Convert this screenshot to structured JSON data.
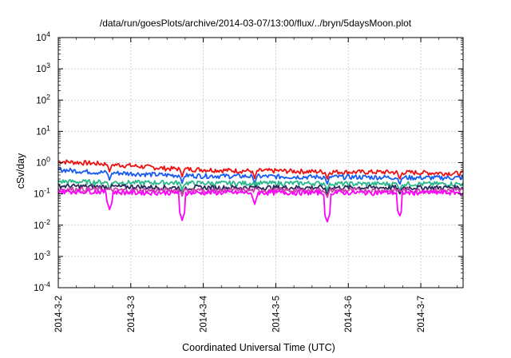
{
  "chart_data": {
    "type": "line",
    "title": "/data/run/goesPlots/archive/2014-03-07/13:00/flux/../bryn/5daysMoon.plot",
    "xlabel": "Coordinated Universal Time (UTC)",
    "ylabel": "cSv/day",
    "yscale": "log",
    "ylim": [
      0.0001,
      10000
    ],
    "yticks": [
      {
        "base": "10",
        "exp": "-4"
      },
      {
        "base": "10",
        "exp": "-3"
      },
      {
        "base": "10",
        "exp": "-2"
      },
      {
        "base": "10",
        "exp": "-1"
      },
      {
        "base": "10",
        "exp": "0"
      },
      {
        "base": "10",
        "exp": "1"
      },
      {
        "base": "10",
        "exp": "2"
      },
      {
        "base": "10",
        "exp": "3"
      },
      {
        "base": "10",
        "exp": "4"
      }
    ],
    "xlim": [
      "2014-03-02",
      "2014-03-07 14:00"
    ],
    "xticks": [
      "2014-3-2",
      "2014-3-3",
      "2014-3-4",
      "2014-3-5",
      "2014-3-6",
      "2014-3-7"
    ],
    "grid": true,
    "series": [
      {
        "color": "#ee1111",
        "x": [
          "2014-03-02",
          "2014-03-02 12:00",
          "2014-03-03",
          "2014-03-03 12:00",
          "2014-03-04",
          "2014-03-04 12:00",
          "2014-03-05",
          "2014-03-05 12:00",
          "2014-03-06",
          "2014-03-06 12:00",
          "2014-03-07",
          "2014-03-07 14:00"
        ],
        "values": [
          1.1,
          0.95,
          0.8,
          0.65,
          0.6,
          0.55,
          0.55,
          0.52,
          0.5,
          0.5,
          0.48,
          0.45
        ]
      },
      {
        "color": "#1a5cf0",
        "x": [
          "2014-03-02",
          "2014-03-02 12:00",
          "2014-03-03",
          "2014-03-03 12:00",
          "2014-03-04",
          "2014-03-04 12:00",
          "2014-03-05",
          "2014-03-05 12:00",
          "2014-03-06",
          "2014-03-06 12:00",
          "2014-03-07",
          "2014-03-07 14:00"
        ],
        "values": [
          0.6,
          0.5,
          0.45,
          0.4,
          0.38,
          0.37,
          0.36,
          0.35,
          0.35,
          0.34,
          0.33,
          0.33
        ]
      },
      {
        "color": "#2ab88c",
        "x": [
          "2014-03-02",
          "2014-03-02 12:00",
          "2014-03-03",
          "2014-03-03 12:00",
          "2014-03-04",
          "2014-03-04 12:00",
          "2014-03-05",
          "2014-03-05 12:00",
          "2014-03-06",
          "2014-03-06 12:00",
          "2014-03-07",
          "2014-03-07 14:00"
        ],
        "values": [
          0.25,
          0.24,
          0.23,
          0.23,
          0.22,
          0.22,
          0.22,
          0.22,
          0.21,
          0.21,
          0.21,
          0.21
        ]
      },
      {
        "color": "#2b2b5c",
        "x": [
          "2014-03-02",
          "2014-03-02 12:00",
          "2014-03-03",
          "2014-03-03 12:00",
          "2014-03-04",
          "2014-03-04 12:00",
          "2014-03-05",
          "2014-03-05 12:00",
          "2014-03-06",
          "2014-03-06 12:00",
          "2014-03-07",
          "2014-03-07 14:00"
        ],
        "values": [
          0.18,
          0.17,
          0.17,
          0.16,
          0.16,
          0.16,
          0.16,
          0.16,
          0.16,
          0.16,
          0.16,
          0.16
        ]
      },
      {
        "color": "#cc44aa",
        "x": [
          "2014-03-02",
          "2014-03-02 12:00",
          "2014-03-03",
          "2014-03-03 12:00",
          "2014-03-04",
          "2014-03-04 12:00",
          "2014-03-05",
          "2014-03-05 12:00",
          "2014-03-06",
          "2014-03-06 12:00",
          "2014-03-07",
          "2014-03-07 14:00"
        ],
        "values": [
          0.14,
          0.14,
          0.13,
          0.13,
          0.13,
          0.13,
          0.13,
          0.13,
          0.13,
          0.13,
          0.13,
          0.13
        ]
      },
      {
        "color": "#ff00ff",
        "x": [
          "2014-03-02",
          "2014-03-02 12:00",
          "2014-03-03",
          "2014-03-03 12:00",
          "2014-03-04",
          "2014-03-04 12:00",
          "2014-03-05",
          "2014-03-05 12:00",
          "2014-03-06",
          "2014-03-06 12:00",
          "2014-03-07",
          "2014-03-07 14:00"
        ],
        "values": [
          0.12,
          0.12,
          0.11,
          0.11,
          0.11,
          0.11,
          0.11,
          0.11,
          0.11,
          0.11,
          0.11,
          0.11
        ]
      }
    ],
    "dips": [
      {
        "x": "2014-03-02 17:00",
        "min": 0.03
      },
      {
        "x": "2014-03-03 17:00",
        "min": 0.014
      },
      {
        "x": "2014-03-04 17:00",
        "min": 0.045
      },
      {
        "x": "2014-03-05 17:00",
        "min": 0.012
      },
      {
        "x": "2014-03-06 17:00",
        "min": 0.018
      }
    ]
  }
}
